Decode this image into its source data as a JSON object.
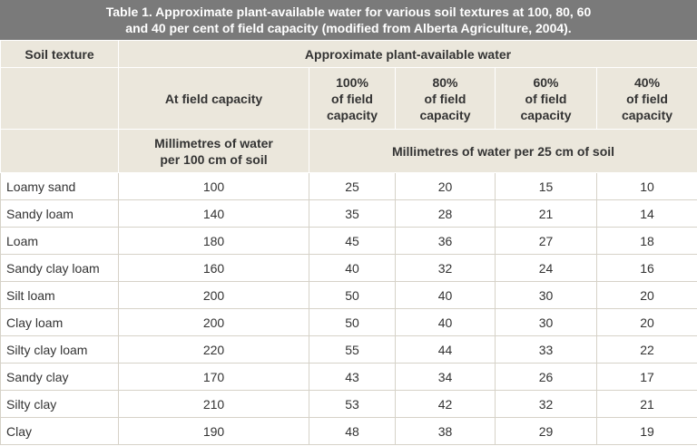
{
  "title": "Table 1. Approximate plant-available water for various soil textures at 100, 80, 60 and 40 per cent of field capacity (modified from Alberta Agriculture, 2004).",
  "header": {
    "soil_texture": "Soil texture",
    "group": "Approximate plant-available water",
    "field_capacity": "At field capacity",
    "percent_columns": [
      [
        "100%",
        "of field",
        "capacity"
      ],
      [
        "80%",
        "of field",
        "capacity"
      ],
      [
        "60%",
        "of field",
        "capacity"
      ],
      [
        "40%",
        "of field",
        "capacity"
      ]
    ],
    "unit_100cm": "Millimetres of water per 100 cm of soil",
    "unit_25cm": "Millimetres of water per 25 cm of soil"
  },
  "table": {
    "rows": [
      [
        "Loamy sand",
        100,
        25,
        20,
        15,
        10
      ],
      [
        "Sandy loam",
        140,
        35,
        28,
        21,
        14
      ],
      [
        "Loam",
        180,
        45,
        36,
        27,
        18
      ],
      [
        "Sandy clay loam",
        160,
        40,
        32,
        24,
        16
      ],
      [
        "Silt loam",
        200,
        50,
        40,
        30,
        20
      ],
      [
        "Clay loam",
        200,
        50,
        40,
        30,
        20
      ],
      [
        "Silty clay loam",
        220,
        55,
        44,
        33,
        22
      ],
      [
        "Sandy clay",
        170,
        43,
        34,
        26,
        17
      ],
      [
        "Silty clay",
        210,
        53,
        42,
        32,
        21
      ],
      [
        "Clay",
        190,
        48,
        38,
        29,
        19
      ]
    ]
  }
}
